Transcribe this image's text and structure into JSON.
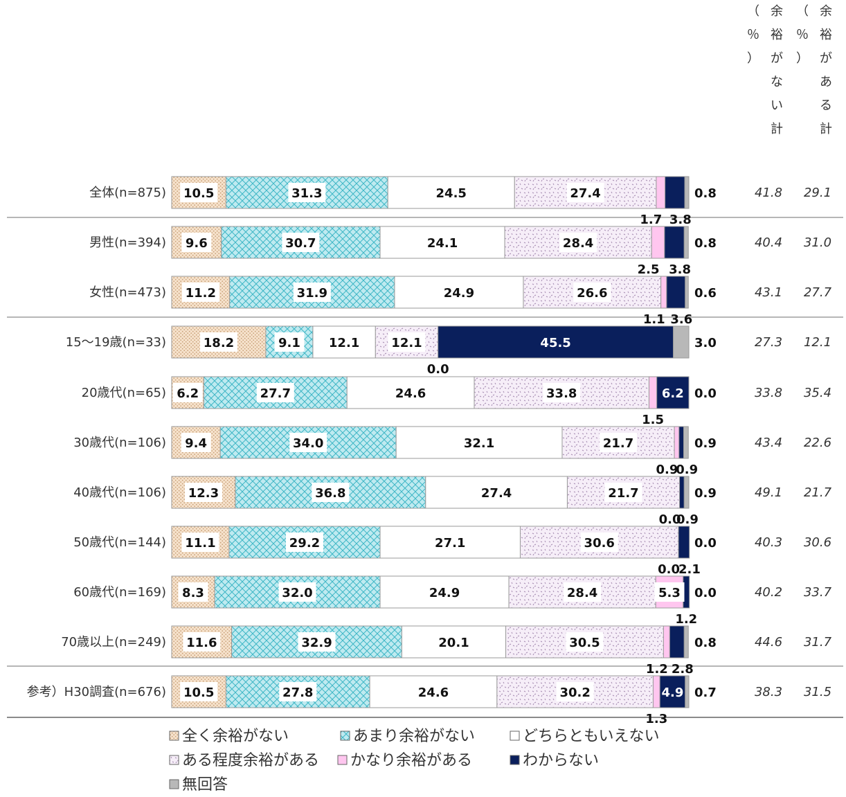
{
  "chart_data": {
    "type": "bar",
    "orientation": "horizontal",
    "stacked": true,
    "unit": "%",
    "categories": [
      "全体(n=875)",
      "男性(n=394)",
      "女性(n=473)",
      "15～19歳(n=33)",
      "20歳代(n=65)",
      "30歳代(n=106)",
      "40歳代(n=106)",
      "50歳代(n=144)",
      "60歳代(n=169)",
      "70歳以上(n=249)",
      "参考）H30調査(n=676)"
    ],
    "series": [
      {
        "name": "全く余裕がない",
        "color": "#f6e2cc",
        "pattern": "dots",
        "values": [
          10.5,
          9.6,
          11.2,
          18.2,
          6.2,
          9.4,
          12.3,
          11.1,
          8.3,
          11.6,
          10.5
        ]
      },
      {
        "name": "あまり余裕がない",
        "color": "#bfeaf0",
        "pattern": "crosshatch",
        "values": [
          31.3,
          30.7,
          31.9,
          9.1,
          27.7,
          34.0,
          36.8,
          29.2,
          32.0,
          32.9,
          27.8
        ]
      },
      {
        "name": "どちらともいえない",
        "color": "#ffffff",
        "pattern": "none",
        "values": [
          24.5,
          24.1,
          24.9,
          12.1,
          24.6,
          32.1,
          27.4,
          27.1,
          24.9,
          20.1,
          24.6
        ]
      },
      {
        "name": "ある程度余裕がある",
        "color": "#f6eef8",
        "pattern": "confetti",
        "values": [
          27.4,
          28.4,
          26.6,
          12.1,
          33.8,
          21.7,
          21.7,
          30.6,
          28.4,
          30.5,
          30.2
        ]
      },
      {
        "name": "かなり余裕がある",
        "color": "#ffc6ef",
        "pattern": "none",
        "values": [
          1.7,
          2.5,
          1.1,
          0.0,
          1.5,
          0.9,
          0.0,
          0.0,
          5.3,
          1.2,
          1.3
        ]
      },
      {
        "name": "わからない",
        "color": "#0a1f5c",
        "pattern": "none",
        "values": [
          3.8,
          3.8,
          3.6,
          45.5,
          6.2,
          0.9,
          0.9,
          2.1,
          1.2,
          2.8,
          4.9
        ]
      },
      {
        "name": "無回答",
        "color": "#b8b8b8",
        "pattern": "none",
        "values": [
          0.8,
          0.8,
          0.6,
          3.0,
          0.0,
          0.9,
          0.9,
          0.0,
          0.0,
          0.8,
          0.7
        ]
      }
    ],
    "summary_columns": [
      {
        "header": [
          "（",
          "％",
          "）",
          "余",
          "裕",
          "が",
          "な",
          "い",
          "計"
        ],
        "values": [
          "41.8",
          "40.4",
          "43.1",
          "27.3",
          "33.8",
          "43.4",
          "49.1",
          "40.3",
          "40.2",
          "44.6",
          "38.3"
        ]
      },
      {
        "header": [
          "（",
          "％",
          "）",
          "余",
          "裕",
          "が",
          "あ",
          "る",
          "計"
        ],
        "values": [
          "29.1",
          "31.0",
          "27.7",
          "12.1",
          "35.4",
          "22.6",
          "21.7",
          "30.6",
          "33.7",
          "31.7",
          "31.5"
        ]
      }
    ],
    "xlim": [
      0,
      100
    ],
    "legend_position": "bottom"
  }
}
